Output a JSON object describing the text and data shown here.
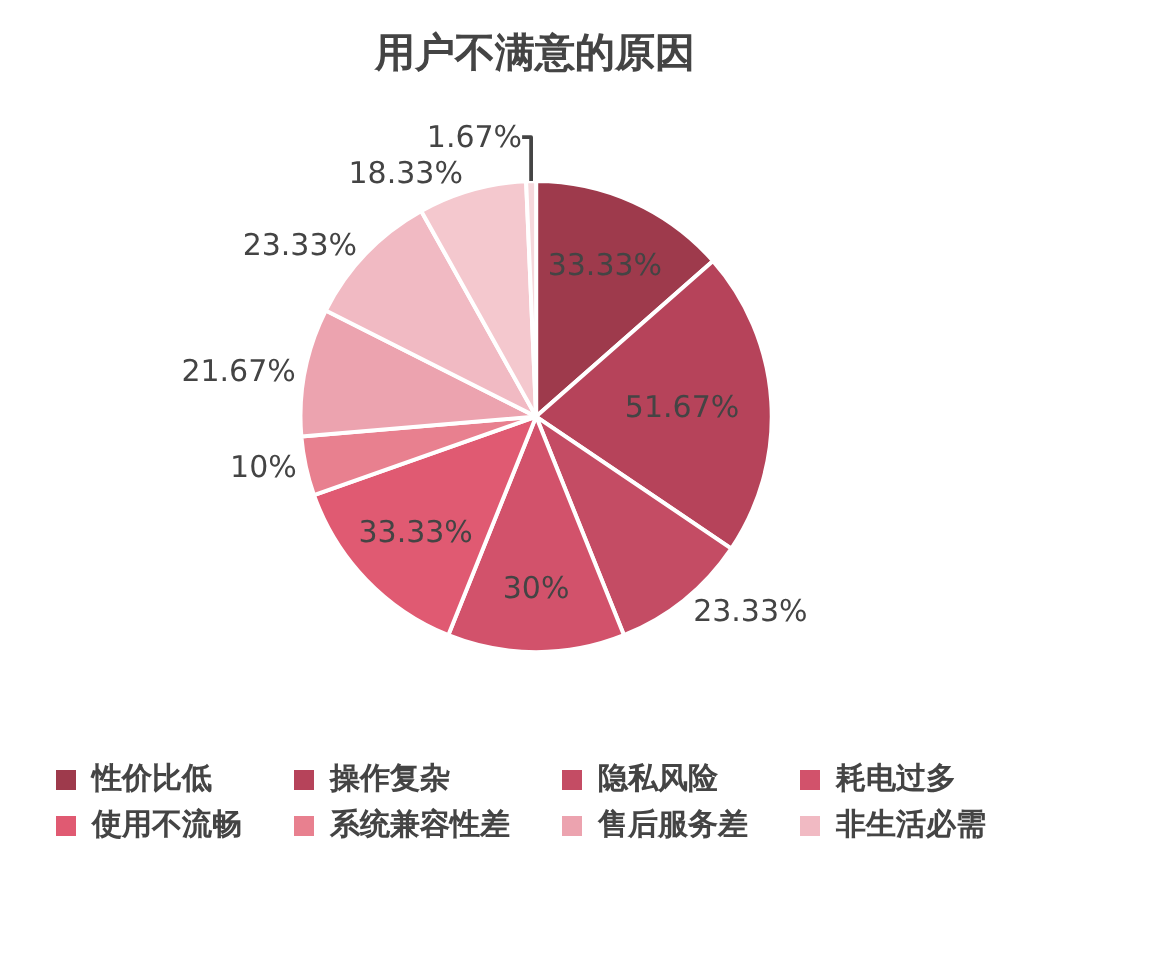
{
  "chart_data": {
    "type": "pie",
    "title": "用户不满意的原因",
    "categories": [
      "性价比低",
      "操作复杂",
      "隐私风险",
      "耗电过多",
      "使用不流畅",
      "系统兼容性差",
      "售后服务差",
      "非生活必需",
      null,
      null
    ],
    "values": [
      33.33,
      51.67,
      23.33,
      30,
      33.33,
      10,
      21.67,
      23.33,
      18.33,
      1.67
    ],
    "value_labels": [
      "33.33%",
      "51.67%",
      "23.33%",
      "30%",
      "33.33%",
      "10%",
      "21.67%",
      "23.33%",
      "18.33%",
      "1.67%"
    ],
    "colors": [
      "#9e3a4c",
      "#b6435a",
      "#c44c64",
      "#d2526b",
      "#e05a72",
      "#e8808f",
      "#eca3af",
      "#f1bac3",
      "#f4c8ce",
      "#f6d8dc"
    ],
    "legend": "bottom"
  }
}
